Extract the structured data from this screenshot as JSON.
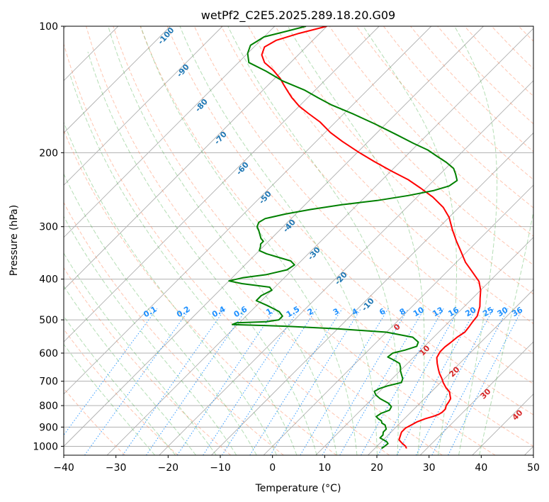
{
  "chart_data": {
    "type": "skew-t",
    "title": "wetPf2_C2E5.2025.289.18.20.G09",
    "xlabel": "Temperature (°C)",
    "ylabel": "Pressure (hPa)",
    "xlim": [
      -40,
      50
    ],
    "ylim": [
      1050,
      100
    ],
    "x_ticks": [
      "−40",
      "−30",
      "−20",
      "−10",
      "0",
      "10",
      "20",
      "30",
      "40",
      "50"
    ],
    "x_tick_values": [
      -40,
      -30,
      -20,
      -10,
      0,
      10,
      20,
      30,
      40,
      50
    ],
    "y_ticks": [
      "100",
      "200",
      "300",
      "400",
      "500",
      "600",
      "700",
      "800",
      "900",
      "1000"
    ],
    "y_tick_values": [
      100,
      200,
      300,
      400,
      500,
      600,
      700,
      800,
      900,
      1000
    ],
    "colors": {
      "temperature": "#ff0000",
      "dewpoint": "#008000",
      "dry_adiabat": "#ff7f50",
      "moist_adiabat": "#2ca02c",
      "mixing_ratio": "#1e90ff",
      "isotherm": "#808080",
      "grid": "#b0b0b0",
      "bg_adiabat": "#d2b48c"
    },
    "series": [
      {
        "key": "temperature",
        "points": [
          [
            26.1,
            1012
          ],
          [
            25.5,
            1000
          ],
          [
            24.0,
            980
          ],
          [
            23.0,
            965
          ],
          [
            22.5,
            945
          ],
          [
            22.0,
            925
          ],
          [
            22.0,
            905
          ],
          [
            22.5,
            890
          ],
          [
            23.0,
            875
          ],
          [
            24.0,
            860
          ],
          [
            25.0,
            850
          ],
          [
            25.7,
            840
          ],
          [
            26.0,
            830
          ],
          [
            26.0,
            815
          ],
          [
            25.5,
            800
          ],
          [
            25.3,
            785
          ],
          [
            25.0,
            770
          ],
          [
            24.2,
            755
          ],
          [
            23.5,
            742
          ],
          [
            22.0,
            725
          ],
          [
            20.5,
            705
          ],
          [
            19.5,
            690
          ],
          [
            18.0,
            670
          ],
          [
            17.0,
            655
          ],
          [
            15.7,
            635
          ],
          [
            14.5,
            615
          ],
          [
            14.0,
            595
          ],
          [
            14.0,
            580
          ],
          [
            14.3,
            565
          ],
          [
            14.5,
            550
          ],
          [
            15.0,
            535
          ],
          [
            14.8,
            520
          ],
          [
            14.5,
            505
          ],
          [
            14.3,
            490
          ],
          [
            13.0,
            465
          ],
          [
            11.5,
            445
          ],
          [
            10.0,
            425
          ],
          [
            8.0,
            405
          ],
          [
            5.0,
            385
          ],
          [
            1.8,
            365
          ],
          [
            -1.0,
            345
          ],
          [
            -4.0,
            325
          ],
          [
            -7.0,
            305
          ],
          [
            -10.0,
            285
          ],
          [
            -13.0,
            270
          ],
          [
            -17.0,
            255
          ],
          [
            -21.0,
            243
          ],
          [
            -25.0,
            232
          ],
          [
            -30.0,
            221
          ],
          [
            -35.0,
            210
          ],
          [
            -40.0,
            199
          ],
          [
            -45.0,
            188
          ],
          [
            -49.0,
            179
          ],
          [
            -53.0,
            169
          ],
          [
            -57.0,
            161
          ],
          [
            -60.0,
            155
          ],
          [
            -63.0,
            148
          ],
          [
            -65.0,
            143
          ],
          [
            -67.0,
            138
          ],
          [
            -69.0,
            133
          ],
          [
            -72.0,
            127
          ],
          [
            -75.0,
            122
          ],
          [
            -77.0,
            117
          ],
          [
            -78.0,
            112
          ],
          [
            -77.0,
            108
          ],
          [
            -74.0,
            104
          ],
          [
            -70.0,
            100
          ]
        ]
      },
      {
        "key": "dewpoint",
        "points": [
          [
            21.3,
            1012
          ],
          [
            21.5,
            1000
          ],
          [
            21.6,
            985
          ],
          [
            21.0,
            975
          ],
          [
            20.0,
            965
          ],
          [
            19.0,
            955
          ],
          [
            19.0,
            940
          ],
          [
            18.5,
            925
          ],
          [
            18.5,
            910
          ],
          [
            18.0,
            900
          ],
          [
            17.5,
            890
          ],
          [
            16.5,
            880
          ],
          [
            16.0,
            870
          ],
          [
            15.0,
            860
          ],
          [
            14.2,
            850
          ],
          [
            14.5,
            835
          ],
          [
            15.5,
            820
          ],
          [
            15.2,
            805
          ],
          [
            14.0,
            790
          ],
          [
            11.5,
            770
          ],
          [
            10.0,
            755
          ],
          [
            9.0,
            740
          ],
          [
            9.5,
            728
          ],
          [
            10.5,
            718
          ],
          [
            12.5,
            705
          ],
          [
            12.0,
            690
          ],
          [
            11.0,
            675
          ],
          [
            10.0,
            660
          ],
          [
            9.5,
            650
          ],
          [
            8.5,
            635
          ],
          [
            7.0,
            625
          ],
          [
            5.0,
            613
          ],
          [
            5.2,
            600
          ],
          [
            7.0,
            590
          ],
          [
            8.5,
            578
          ],
          [
            8.0,
            565
          ],
          [
            6.0,
            550
          ],
          [
            0.0,
            535
          ],
          [
            -10.0,
            525
          ],
          [
            -20.0,
            518
          ],
          [
            -31.0,
            513
          ],
          [
            -30.5,
            508
          ],
          [
            -25.0,
            505
          ],
          [
            -23.0,
            500
          ],
          [
            -23.0,
            490
          ],
          [
            -24.5,
            478
          ],
          [
            -28.0,
            462
          ],
          [
            -31.0,
            450
          ],
          [
            -31.0,
            438
          ],
          [
            -30.0,
            425
          ],
          [
            -31.0,
            418
          ],
          [
            -37.0,
            410
          ],
          [
            -40.0,
            404
          ],
          [
            -38.0,
            397
          ],
          [
            -34.0,
            390
          ],
          [
            -31.0,
            380
          ],
          [
            -30.5,
            370
          ],
          [
            -32.0,
            362
          ],
          [
            -35.0,
            355
          ],
          [
            -38.0,
            348
          ],
          [
            -40.0,
            342
          ],
          [
            -40.5,
            335
          ],
          [
            -41.0,
            330
          ],
          [
            -41.0,
            325
          ],
          [
            -42.0,
            320
          ],
          [
            -43.0,
            313
          ],
          [
            -44.0,
            306
          ],
          [
            -45.0,
            300
          ],
          [
            -45.5,
            293
          ],
          [
            -45.0,
            287
          ],
          [
            -42.0,
            280
          ],
          [
            -38.0,
            273
          ],
          [
            -33.0,
            266
          ],
          [
            -27.0,
            260
          ],
          [
            -22.0,
            253
          ],
          [
            -18.0,
            246
          ],
          [
            -16.0,
            240
          ],
          [
            -15.5,
            233
          ],
          [
            -17.0,
            225
          ],
          [
            -18.5,
            218
          ],
          [
            -21.0,
            211
          ],
          [
            -24.0,
            204
          ],
          [
            -27.0,
            197
          ],
          [
            -31.0,
            190
          ],
          [
            -36.0,
            181
          ],
          [
            -42.0,
            171
          ],
          [
            -48.0,
            162
          ],
          [
            -54.0,
            154
          ],
          [
            -58.0,
            148
          ],
          [
            -62.0,
            142
          ],
          [
            -68.0,
            135
          ],
          [
            -73.0,
            128
          ],
          [
            -78.0,
            122
          ],
          [
            -80.0,
            116
          ],
          [
            -81.0,
            111
          ],
          [
            -80.0,
            106
          ],
          [
            -77.0,
            103
          ],
          [
            -74.0,
            100
          ]
        ]
      }
    ],
    "dry_adiabat_labels": [
      "0",
      "10",
      "20",
      "30",
      "40"
    ],
    "moist_adiabat_labels": [
      "-100",
      "-90",
      "-80",
      "-70",
      "-60",
      "-50",
      "-40",
      "-30",
      "-20",
      "-10"
    ],
    "mixing_ratio_labels": [
      "0.1",
      "0.2",
      "0.4",
      "0.6",
      "1",
      "1.5",
      "2",
      "3",
      "4",
      "6",
      "8",
      "10",
      "13",
      "16",
      "20",
      "25",
      "30",
      "36"
    ],
    "grid": true
  }
}
